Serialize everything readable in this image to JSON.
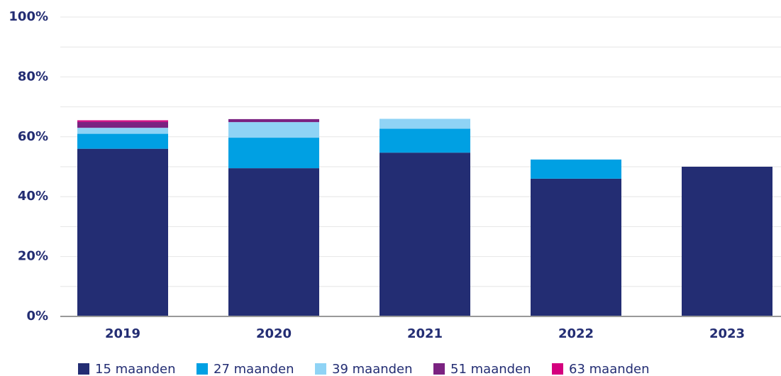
{
  "chart_data": {
    "type": "stacked-bar",
    "categories": [
      "2019",
      "2020",
      "2021",
      "2022",
      "2023"
    ],
    "series": [
      {
        "name": "15 maanden",
        "color": "#232d73",
        "values": [
          56,
          49.5,
          54.7,
          46,
          50
        ]
      },
      {
        "name": "27 maanden",
        "color": "#00a0e3",
        "values": [
          5,
          10.2,
          8,
          6.4,
          null
        ]
      },
      {
        "name": "39 maanden",
        "color": "#8fd3f5",
        "values": [
          2,
          5.2,
          3.3,
          null,
          null
        ]
      },
      {
        "name": "51 maanden",
        "color": "#7b2281",
        "values": [
          2,
          1,
          null,
          null,
          null
        ]
      },
      {
        "name": "63 maanden",
        "color": "#d4007e",
        "values": [
          0.5,
          null,
          null,
          null,
          null
        ]
      }
    ],
    "ylim": [
      0,
      100
    ],
    "yticks": [
      {
        "value": 0,
        "label": "0%"
      },
      {
        "value": 20,
        "label": "20%"
      },
      {
        "value": 40,
        "label": "40%"
      },
      {
        "value": 60,
        "label": "60%"
      },
      {
        "value": 80,
        "label": "80%"
      },
      {
        "value": 100,
        "label": "100%"
      }
    ],
    "minor_yticks": [
      10,
      30,
      50,
      70,
      90
    ],
    "grid": true,
    "legend": "bottom"
  }
}
